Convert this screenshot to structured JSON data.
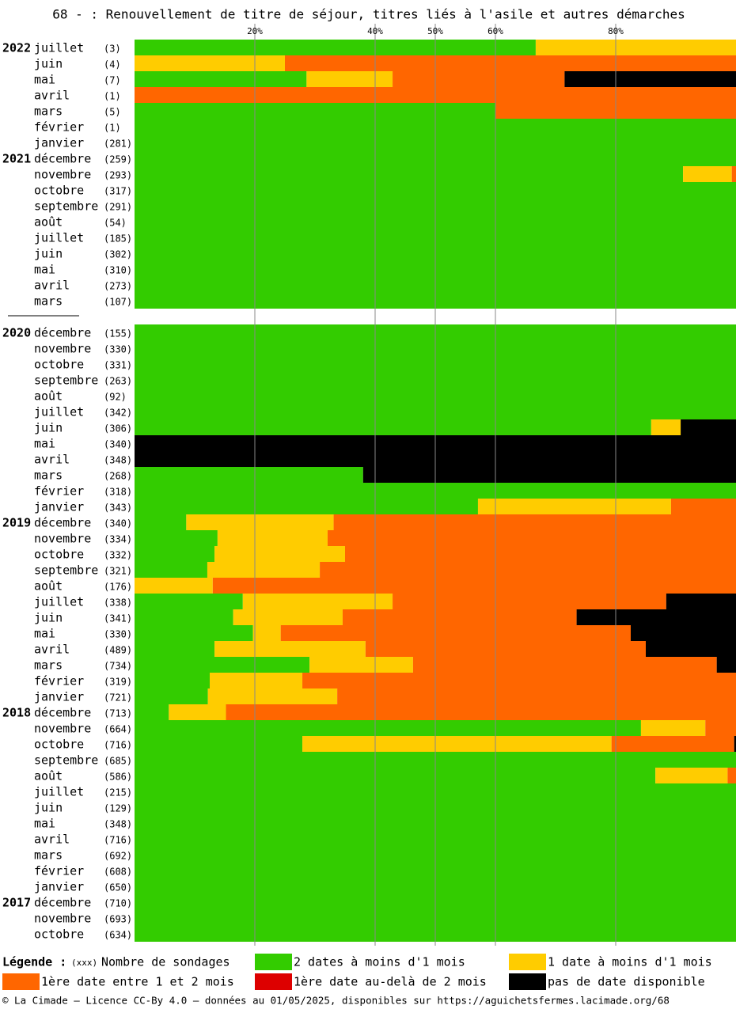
{
  "chart_data": {
    "type": "stacked-barh",
    "title": "68 - : Renouvellement de titre de séjour, titres liés à l'asile et autres démarches",
    "xlim": [
      0,
      100
    ],
    "xticks": [
      {
        "value": 20,
        "label": "20%"
      },
      {
        "value": 40,
        "label": "40%"
      },
      {
        "value": 50,
        "label": "50%"
      },
      {
        "value": 60,
        "label": "60%"
      },
      {
        "value": 80,
        "label": "80%"
      }
    ],
    "grid": true,
    "years": [
      "2022",
      null,
      null,
      null,
      null,
      null,
      null,
      "2021",
      null,
      null,
      null,
      null,
      null,
      null,
      null,
      null,
      null,
      null,
      "2020",
      null,
      null,
      null,
      null,
      null,
      null,
      null,
      null,
      null,
      null,
      null,
      "2019",
      null,
      null,
      null,
      null,
      null,
      null,
      null,
      null,
      null,
      null,
      null,
      "2018",
      null,
      null,
      null,
      null,
      null,
      null,
      null,
      null,
      null,
      null,
      null,
      "2017",
      null,
      null
    ],
    "categories": [
      "juillet",
      "juin",
      "mai",
      "avril",
      "mars",
      "février",
      "janvier",
      "décembre",
      "novembre",
      "octobre",
      "septembre",
      "août",
      "juillet",
      "juin",
      "mai",
      "avril",
      "mars",
      null,
      "décembre",
      "novembre",
      "octobre",
      "septembre",
      "août",
      "juillet",
      "juin",
      "mai",
      "avril",
      "mars",
      "février",
      "janvier",
      "décembre",
      "novembre",
      "octobre",
      "septembre",
      "août",
      "juillet",
      "juin",
      "mai",
      "avril",
      "mars",
      "février",
      "janvier",
      "décembre",
      "novembre",
      "octobre",
      "septembre",
      "août",
      "juillet",
      "juin",
      "mai",
      "avril",
      "mars",
      "février",
      "janvier",
      "décembre",
      "novembre",
      "octobre"
    ],
    "counts": [
      "(3)",
      "(4)",
      "(7)",
      "(1)",
      "(5)",
      "(1)",
      "(281)",
      "(259)",
      "(293)",
      "(317)",
      "(291)",
      "(54)",
      "(185)",
      "(302)",
      "(310)",
      "(273)",
      "(107)",
      null,
      "(155)",
      "(330)",
      "(331)",
      "(263)",
      "(92)",
      "(342)",
      "(306)",
      "(340)",
      "(348)",
      "(268)",
      "(318)",
      "(343)",
      "(340)",
      "(334)",
      "(332)",
      "(321)",
      "(176)",
      "(338)",
      "(341)",
      "(330)",
      "(489)",
      "(734)",
      "(319)",
      "(721)",
      "(713)",
      "(664)",
      "(716)",
      "(685)",
      "(586)",
      "(215)",
      "(129)",
      "(348)",
      "(716)",
      "(692)",
      "(608)",
      "(650)",
      "(710)",
      "(693)",
      "(634)"
    ],
    "series": [
      {
        "name": "2 dates à moins d'1 mois",
        "color": "#33cc00",
        "values": [
          66.7,
          0,
          28.6,
          0,
          60,
          100,
          100,
          100,
          91.2,
          100,
          100,
          100,
          100,
          100,
          100,
          100,
          100,
          null,
          100,
          100,
          100,
          100,
          100,
          100,
          85.9,
          0,
          0,
          38,
          100,
          57.1,
          8.6,
          13.8,
          13.3,
          12.1,
          0,
          18,
          16.4,
          19.7,
          13.3,
          29.1,
          12.5,
          12.2,
          5.7,
          84.2,
          27.9,
          100,
          86.6,
          100,
          100,
          100,
          100,
          100,
          100,
          100,
          100,
          100,
          100
        ]
      },
      {
        "name": "1 date à moins d'1 mois",
        "color": "#ffcc00",
        "values": [
          33.3,
          25,
          14.3,
          0,
          0,
          0,
          0,
          0,
          8.1,
          0,
          0,
          0,
          0,
          0,
          0,
          0,
          0,
          null,
          0,
          0,
          0,
          0,
          0,
          0,
          4.9,
          0,
          0,
          0,
          0,
          32.1,
          24.5,
          18.3,
          21.7,
          18.7,
          13,
          24.9,
          18.2,
          4.6,
          25.1,
          17.2,
          15.4,
          21.5,
          9.5,
          10.7,
          51.4,
          0,
          12,
          0,
          0,
          0,
          0,
          0,
          0,
          0,
          0,
          0,
          0
        ]
      },
      {
        "name": "1ère date entre 1 et 2 mois",
        "color": "#ff6600",
        "values": [
          0,
          75,
          28.6,
          100,
          40,
          0,
          0,
          0,
          0.7,
          0,
          0,
          0,
          0,
          0,
          0,
          0,
          0,
          null,
          0,
          0,
          0,
          0,
          0,
          0,
          0,
          0,
          0,
          0,
          0,
          10.8,
          66.9,
          67.9,
          65,
          69.2,
          87,
          45.5,
          38.9,
          58.2,
          46.6,
          50.5,
          72.1,
          66.3,
          84.8,
          5.1,
          20.4,
          0,
          1.4,
          0,
          0,
          0,
          0,
          0,
          0,
          0,
          0,
          0,
          0
        ]
      },
      {
        "name": "1ère date au-delà de 2 mois",
        "color": "#dd0000",
        "values": [
          0,
          0,
          0,
          0,
          0,
          0,
          0,
          0,
          0,
          0,
          0,
          0,
          0,
          0,
          0,
          0,
          0,
          null,
          0,
          0,
          0,
          0,
          0,
          0,
          0,
          0,
          0,
          0,
          0,
          0,
          0,
          0,
          0,
          0,
          0,
          0,
          0,
          0,
          0,
          0,
          0,
          0,
          0,
          0,
          0,
          0,
          0,
          0,
          0,
          0,
          0,
          0,
          0,
          0,
          0,
          0,
          0
        ]
      },
      {
        "name": "pas de date disponible",
        "color": "#000000",
        "values": [
          0,
          0,
          28.5,
          0,
          0,
          0,
          0,
          0,
          0,
          0,
          0,
          0,
          0,
          0,
          0,
          0,
          0,
          null,
          0,
          0,
          0,
          0,
          0,
          0,
          9.2,
          100,
          100,
          62,
          0,
          0,
          0,
          0,
          0,
          0,
          0,
          11.6,
          26.5,
          17.5,
          15,
          3.2,
          0,
          0,
          0,
          0,
          0.3,
          0,
          0,
          0,
          0,
          0,
          0,
          0,
          0,
          0,
          0,
          0,
          0
        ]
      }
    ],
    "legend_title": "Légende :",
    "count_legend": {
      "sample": "(xxx)",
      "label": "Nombre de sondages"
    },
    "footer": "© La Cimade — Licence CC-By 4.0 — données au 01/05/2025, disponibles sur https://aguichetsfermes.lacimade.org/68"
  }
}
